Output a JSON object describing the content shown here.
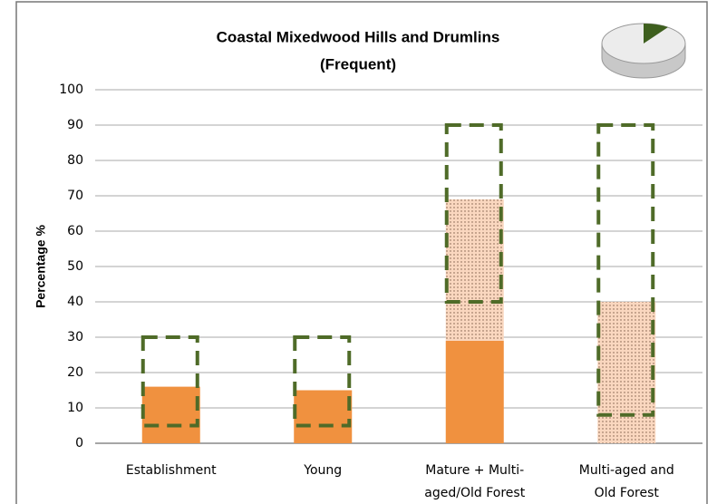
{
  "chart_data": {
    "type": "bar",
    "title": "Coastal Mixedwood Hills and Drumlins",
    "subtitle": "(Frequent)",
    "y_label": "Percentage %",
    "categories": [
      [
        "Establishment"
      ],
      [
        "Young"
      ],
      [
        "Mature + Multi-",
        "aged/Old Forest"
      ],
      [
        "Multi-aged and",
        "Old Forest"
      ]
    ],
    "series": [
      {
        "color": "#f0913f",
        "values": [
          16,
          15,
          29,
          null
        ]
      },
      {
        "color": "#fad7bf",
        "pattern": "dots",
        "values": [
          null,
          null,
          40,
          40
        ]
      }
    ],
    "ranges": {
      "color": "#4f6b28",
      "low": [
        5,
        5,
        40,
        8
      ],
      "high": [
        30,
        30,
        90,
        90
      ]
    },
    "ylim": [
      0,
      100
    ],
    "yticks": [
      0,
      10,
      20,
      30,
      40,
      50,
      60,
      70,
      80,
      90,
      100
    ],
    "grid": true
  }
}
